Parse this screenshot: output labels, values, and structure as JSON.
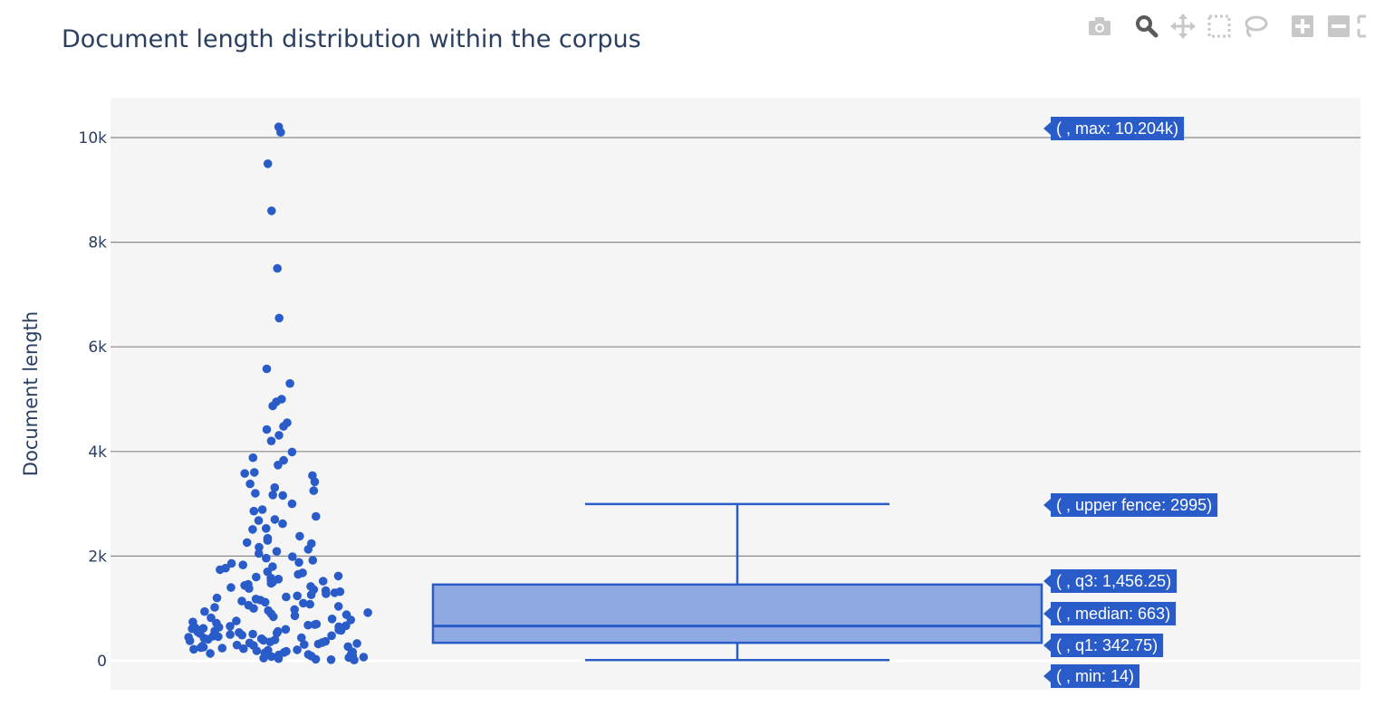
{
  "title": "Document length distribution within the corpus",
  "toolbar": {
    "icons": [
      "camera-icon",
      "zoom-icon",
      "pan-icon",
      "box-select-icon",
      "lasso-icon",
      "zoom-in-icon",
      "zoom-out-icon",
      "autoscale-icon"
    ]
  },
  "colors": {
    "plot_bg": "#f5f5f5",
    "grid": "#8a8a8a",
    "marker": "#2a5cc9",
    "box_fill": "#8faae3",
    "box_line": "#2a5cc9",
    "text": "#2a3f5f"
  },
  "chart_data": {
    "type": "box",
    "title": "Document length distribution within the corpus",
    "ylabel": "Document length",
    "ylim": [
      -500,
      10800
    ],
    "yticks": [
      0,
      2000,
      4000,
      6000,
      8000,
      10000
    ],
    "ytick_labels": [
      "0",
      "2k",
      "4k",
      "6k",
      "8k",
      "10k"
    ],
    "grid": true,
    "stats": {
      "min": 14,
      "q1": 342.75,
      "median": 663,
      "q3": 1456.25,
      "upper_fence": 2995,
      "max": 10204
    },
    "hover_labels": [
      "( , max: 10.204k)",
      "( , upper fence: 2995)",
      "( , q3: 1,456.25)",
      "( , median: 663)",
      "( , q1: 342.75)",
      "( , min: 14)"
    ],
    "points_y": [
      10204,
      10100,
      9500,
      8600,
      7500,
      6550,
      5580,
      5300,
      5000,
      4950,
      4870,
      4550,
      4480,
      4420,
      4310,
      4200,
      3990,
      3880,
      3830,
      3740,
      3600,
      3580,
      3540,
      3420,
      3380,
      3310,
      3250,
      3200,
      3170,
      3160,
      3000,
      2890,
      2860,
      2760,
      2700,
      2680,
      2620,
      2530,
      2510,
      2380,
      2340,
      2300,
      2260,
      2240,
      2170,
      2130,
      2090,
      2050,
      1990,
      1960,
      1920,
      1880,
      1860,
      1830,
      1800,
      1770,
      1740,
      1700,
      1680,
      1650,
      1620,
      1600,
      1580,
      1560,
      1540,
      1520,
      1500,
      1480,
      1460,
      1440,
      1420,
      1400,
      1380,
      1360,
      1340,
      1320,
      1300,
      1280,
      1260,
      1240,
      1220,
      1200,
      1180,
      1160,
      1140,
      1120,
      1100,
      1080,
      1060,
      1040,
      1020,
      1000,
      980,
      960,
      940,
      920,
      900,
      880,
      860,
      840,
      820,
      800,
      780,
      760,
      740,
      720,
      700,
      690,
      680,
      670,
      660,
      650,
      640,
      630,
      620,
      610,
      600,
      590,
      580,
      570,
      560,
      550,
      540,
      530,
      520,
      510,
      500,
      490,
      480,
      470,
      460,
      450,
      440,
      430,
      420,
      410,
      400,
      390,
      380,
      370,
      360,
      350,
      340,
      330,
      320,
      310,
      300,
      290,
      280,
      270,
      260,
      250,
      240,
      230,
      220,
      210,
      200,
      190,
      180,
      170,
      160,
      150,
      140,
      130,
      120,
      110,
      100,
      90,
      80,
      70,
      60,
      50,
      40,
      30,
      20,
      14
    ]
  }
}
